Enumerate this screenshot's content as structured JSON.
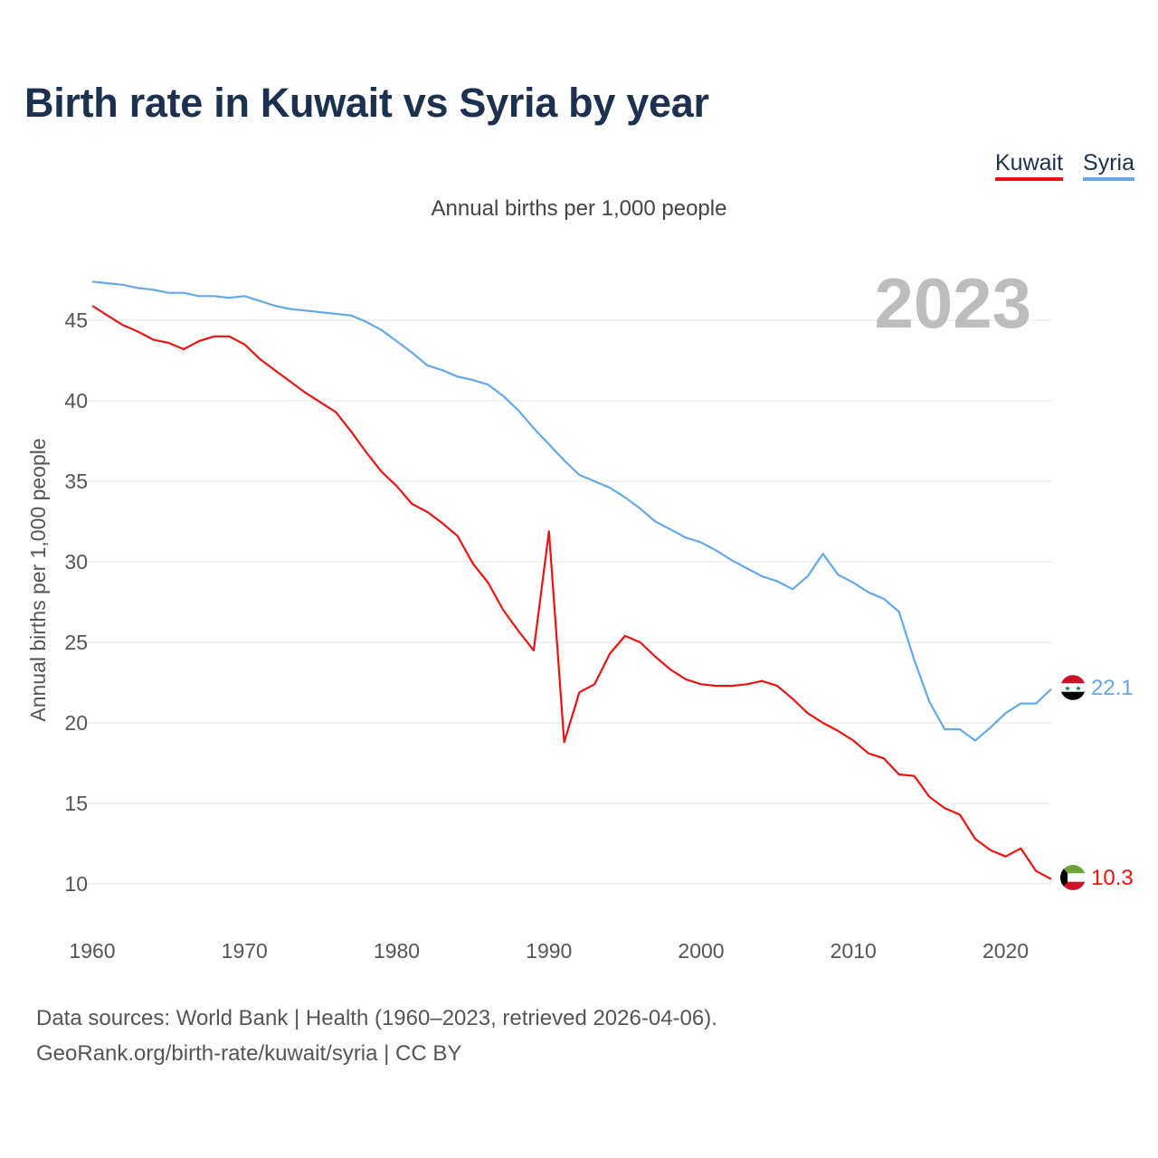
{
  "title": "Birth rate in Kuwait vs Syria by year",
  "subtitle": "Annual births per 1,000 people",
  "legend": [
    {
      "label": "Kuwait",
      "color": "#ee1111"
    },
    {
      "label": "Syria",
      "color": "#64a8e8"
    }
  ],
  "sources": {
    "line1": "Data sources: World Bank | Health (1960–2023, retrieved 2026-04-06).",
    "line2": "GeoRank.org/birth-rate/kuwait/syria | CC BY"
  },
  "chart_data": {
    "type": "line",
    "title": "Birth rate in Kuwait vs Syria by year",
    "subtitle": "Annual births per 1,000 people",
    "xlabel": "",
    "ylabel": "Annual births per 1,000 people",
    "current_year": "2023",
    "xlim": [
      1960,
      2023
    ],
    "ylim": [
      8,
      48
    ],
    "grid": true,
    "legend_position": "top-right",
    "x_ticks": [
      1960,
      1970,
      1980,
      1990,
      2000,
      2010,
      2020
    ],
    "y_ticks": [
      10,
      15,
      20,
      25,
      30,
      35,
      40,
      45
    ],
    "x": [
      1960,
      1961,
      1962,
      1963,
      1964,
      1965,
      1966,
      1967,
      1968,
      1969,
      1970,
      1971,
      1972,
      1973,
      1974,
      1975,
      1976,
      1977,
      1978,
      1979,
      1980,
      1981,
      1982,
      1983,
      1984,
      1985,
      1986,
      1987,
      1988,
      1989,
      1990,
      1991,
      1992,
      1993,
      1994,
      1995,
      1996,
      1997,
      1998,
      1999,
      2000,
      2001,
      2002,
      2003,
      2004,
      2005,
      2006,
      2007,
      2008,
      2009,
      2010,
      2011,
      2012,
      2013,
      2014,
      2015,
      2016,
      2017,
      2018,
      2019,
      2020,
      2021,
      2022,
      2023
    ],
    "series": [
      {
        "name": "Kuwait",
        "color": "#ee1111",
        "end_label": "10.3",
        "values": [
          45.9,
          45.3,
          44.7,
          44.3,
          43.8,
          43.6,
          43.2,
          43.7,
          44.0,
          44.0,
          43.5,
          42.6,
          41.9,
          41.2,
          40.5,
          39.9,
          39.3,
          38.1,
          36.8,
          35.6,
          34.7,
          33.6,
          33.1,
          32.4,
          31.6,
          29.9,
          28.7,
          27.0,
          25.7,
          24.5,
          31.9,
          18.8,
          21.9,
          22.4,
          24.3,
          25.4,
          25.0,
          24.1,
          23.3,
          22.7,
          22.4,
          22.3,
          22.3,
          22.4,
          22.6,
          22.3,
          21.5,
          20.6,
          20.0,
          19.5,
          18.9,
          18.1,
          17.8,
          16.8,
          16.7,
          15.4,
          14.7,
          14.3,
          12.8,
          12.1,
          11.7,
          12.2,
          10.8,
          10.3
        ]
      },
      {
        "name": "Syria",
        "color": "#64a8e8",
        "end_label": "22.1",
        "values": [
          47.4,
          47.3,
          47.2,
          47.0,
          46.9,
          46.7,
          46.7,
          46.5,
          46.5,
          46.4,
          46.5,
          46.2,
          45.9,
          45.7,
          45.6,
          45.5,
          45.4,
          45.3,
          44.9,
          44.4,
          43.7,
          43.0,
          42.2,
          41.9,
          41.5,
          41.3,
          41.0,
          40.3,
          39.4,
          38.3,
          37.3,
          36.3,
          35.4,
          35.0,
          34.6,
          34.0,
          33.3,
          32.5,
          32.0,
          31.5,
          31.2,
          30.7,
          30.1,
          29.6,
          29.1,
          28.8,
          28.3,
          29.1,
          30.5,
          29.2,
          28.7,
          28.1,
          27.7,
          26.9,
          23.9,
          21.3,
          19.6,
          19.6,
          18.9,
          19.7,
          20.6,
          21.2,
          21.2,
          22.1
        ]
      }
    ]
  }
}
